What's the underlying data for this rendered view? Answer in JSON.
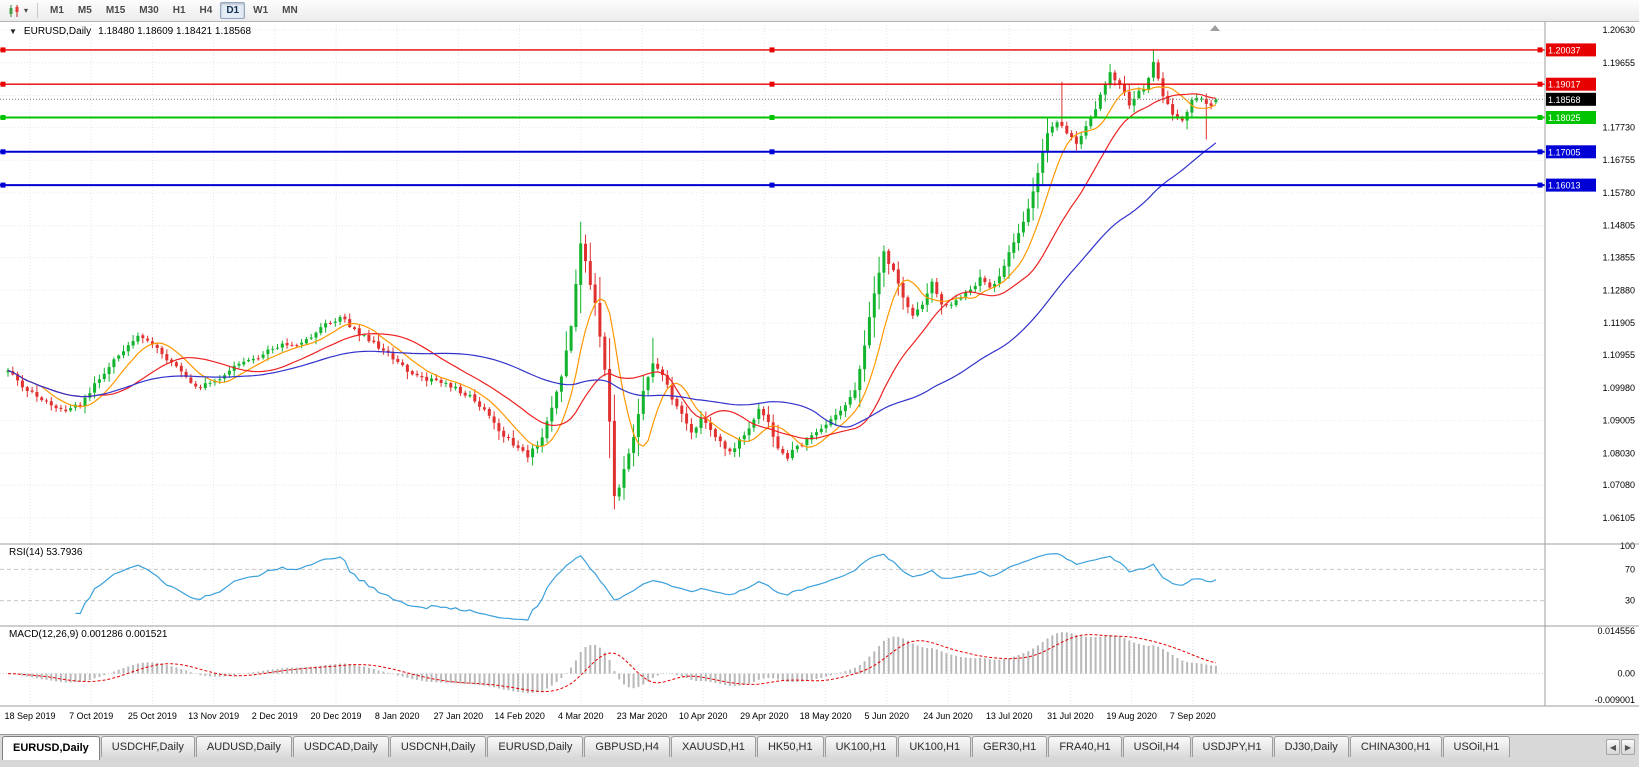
{
  "toolbar": {
    "timeframes": [
      "M1",
      "M5",
      "M15",
      "M30",
      "H1",
      "H4",
      "D1",
      "W1",
      "MN"
    ],
    "active_timeframe": "D1"
  },
  "chart": {
    "symbol_title": "EURUSD,Daily",
    "ohlc_text": "1.18480 1.18609 1.18421 1.18568",
    "rsi_label": "RSI(14) 53.7936",
    "macd_label": "MACD(12,26,9) 0.001286 0.001521"
  },
  "chart_data": {
    "type": "candlestick",
    "symbol": "EURUSD",
    "timeframe": "Daily",
    "title": "EURUSD,Daily",
    "last_ohlc": {
      "open": 1.1848,
      "high": 1.18609,
      "low": 1.18421,
      "close": 1.18568
    },
    "bars": 252,
    "ylim": [
      1.0545,
      1.2084
    ],
    "grid": true,
    "x_labels": [
      "18 Sep 2019",
      "7 Oct 2019",
      "25 Oct 2019",
      "13 Nov 2019",
      "2 Dec 2019",
      "20 Dec 2019",
      "8 Jan 2020",
      "27 Jan 2020",
      "14 Feb 2020",
      "4 Mar 2020",
      "23 Mar 2020",
      "10 Apr 2020",
      "29 Apr 2020",
      "18 May 2020",
      "5 Jun 2020",
      "24 Jun 2020",
      "13 Jul 2020",
      "31 Jul 2020",
      "19 Aug 2020",
      "7 Sep 2020"
    ],
    "y_axis_labels": [
      "1.20630",
      "1.19655",
      "1.17730",
      "1.16755",
      "1.15780",
      "1.14805",
      "1.13855",
      "1.12880",
      "1.11905",
      "1.10955",
      "1.09980",
      "1.09005",
      "1.08030",
      "1.07080",
      "1.06105"
    ],
    "y_gridlines": [
      1.2063,
      1.19655,
      1.1868,
      1.1773,
      1.16755,
      1.1578,
      1.14805,
      1.13855,
      1.1288,
      1.11905,
      1.10955,
      1.0998,
      1.09005,
      1.0803,
      1.0708,
      1.06105
    ],
    "hlines": [
      {
        "price": 1.20037,
        "label": "1.20037",
        "color": "#e60000",
        "width": 1.4
      },
      {
        "price": 1.19017,
        "label": "1.19017",
        "color": "#e60000",
        "width": 1.4
      },
      {
        "price": 1.18025,
        "label": "1.18025",
        "color": "#00c400",
        "width": 2
      },
      {
        "price": 1.17005,
        "label": "1.17005",
        "color": "#0000d6",
        "width": 2
      },
      {
        "price": 1.16013,
        "label": "1.16013",
        "color": "#0000d6",
        "width": 2
      }
    ],
    "current_price": {
      "value": 1.18568,
      "label": "1.18568",
      "tag_color": "#000000"
    },
    "candle_colors": {
      "up": "#12b42e",
      "down": "#e03030"
    },
    "moving_averages": [
      {
        "period": 8,
        "color": "#ff9800"
      },
      {
        "period": 20,
        "color": "#ee2222"
      },
      {
        "period": 50,
        "color": "#3333cc"
      }
    ],
    "price_anchors": [
      [
        0,
        1.105
      ],
      [
        3,
        1.1005
      ],
      [
        6,
        1.0972
      ],
      [
        9,
        1.0945
      ],
      [
        12,
        1.0925
      ],
      [
        15,
        1.0952
      ],
      [
        18,
        1.1005
      ],
      [
        21,
        1.1062
      ],
      [
        24,
        1.111
      ],
      [
        27,
        1.1148
      ],
      [
        30,
        1.1128
      ],
      [
        33,
        1.1082
      ],
      [
        36,
        1.1046
      ],
      [
        39,
        1.1002
      ],
      [
        42,
        1.1008
      ],
      [
        45,
        1.1032
      ],
      [
        48,
        1.107
      ],
      [
        51,
        1.1078
      ],
      [
        54,
        1.1108
      ],
      [
        57,
        1.1128
      ],
      [
        60,
        1.1118
      ],
      [
        63,
        1.1152
      ],
      [
        66,
        1.1185
      ],
      [
        69,
        1.1208
      ],
      [
        72,
        1.1172
      ],
      [
        75,
        1.1138
      ],
      [
        78,
        1.1108
      ],
      [
        81,
        1.1078
      ],
      [
        84,
        1.1032
      ],
      [
        87,
        1.1022
      ],
      [
        90,
        1.1012
      ],
      [
        93,
        1.0995
      ],
      [
        96,
        1.0972
      ],
      [
        99,
        1.0932
      ],
      [
        102,
        1.0872
      ],
      [
        105,
        1.0832
      ],
      [
        108,
        1.0792
      ],
      [
        111,
        1.0852
      ],
      [
        113,
        1.0932
      ],
      [
        115,
        1.1032
      ],
      [
        117,
        1.1182
      ],
      [
        119,
        1.1432
      ],
      [
        120,
        1.1372
      ],
      [
        121,
        1.1302
      ],
      [
        122,
        1.1252
      ],
      [
        123,
        1.1152
      ],
      [
        124,
        1.1052
      ],
      [
        125,
        1.0902
      ],
      [
        126,
        1.0682
      ],
      [
        127,
        1.0702
      ],
      [
        128,
        1.0752
      ],
      [
        130,
        1.0852
      ],
      [
        132,
        1.0992
      ],
      [
        134,
        1.1072
      ],
      [
        136,
        1.1042
      ],
      [
        138,
        1.0962
      ],
      [
        140,
        1.0922
      ],
      [
        142,
        1.0862
      ],
      [
        144,
        1.0902
      ],
      [
        146,
        1.0872
      ],
      [
        148,
        1.0842
      ],
      [
        150,
        1.0802
      ],
      [
        152,
        1.0842
      ],
      [
        154,
        1.0872
      ],
      [
        156,
        1.0932
      ],
      [
        158,
        1.0892
      ],
      [
        160,
        1.0812
      ],
      [
        162,
        1.0792
      ],
      [
        164,
        1.0822
      ],
      [
        166,
        1.0842
      ],
      [
        168,
        1.0872
      ],
      [
        170,
        1.0892
      ],
      [
        172,
        1.0912
      ],
      [
        174,
        1.0952
      ],
      [
        176,
        1.0992
      ],
      [
        178,
        1.1122
      ],
      [
        180,
        1.1282
      ],
      [
        182,
        1.1402
      ],
      [
        184,
        1.1342
      ],
      [
        186,
        1.1262
      ],
      [
        188,
        1.1212
      ],
      [
        190,
        1.1252
      ],
      [
        192,
        1.1312
      ],
      [
        194,
        1.1252
      ],
      [
        196,
        1.1242
      ],
      [
        198,
        1.1262
      ],
      [
        200,
        1.1292
      ],
      [
        202,
        1.1322
      ],
      [
        204,
        1.1292
      ],
      [
        206,
        1.1332
      ],
      [
        208,
        1.1402
      ],
      [
        210,
        1.1462
      ],
      [
        212,
        1.1532
      ],
      [
        214,
        1.1632
      ],
      [
        216,
        1.1752
      ],
      [
        218,
        1.1792
      ],
      [
        220,
        1.1752
      ],
      [
        222,
        1.1722
      ],
      [
        224,
        1.1772
      ],
      [
        226,
        1.1832
      ],
      [
        229,
        1.1932
      ],
      [
        231,
        1.1902
      ],
      [
        233,
        1.1842
      ],
      [
        236,
        1.1892
      ],
      [
        238,
        1.1962
      ],
      [
        240,
        1.1872
      ],
      [
        242,
        1.1812
      ],
      [
        244,
        1.1792
      ],
      [
        246,
        1.1852
      ],
      [
        248,
        1.1862
      ],
      [
        250,
        1.1832
      ],
      [
        251,
        1.18568
      ]
    ],
    "wick_overrides": {
      "119": {
        "high": 1.1492
      },
      "126": {
        "low": 1.0636
      },
      "134": {
        "high": 1.1147
      },
      "182": {
        "high": 1.1422
      },
      "219": {
        "high": 1.1909
      },
      "238": {
        "high": 1.2004
      },
      "249": {
        "low": 1.1737
      }
    },
    "indicators": [
      {
        "name": "RSI",
        "label": "RSI(14) 53.7936",
        "period": 14,
        "levels": [
          70,
          30
        ],
        "axis_labels": [
          "100",
          "70",
          "30"
        ],
        "color": "#3aa0dc",
        "last_value": 53.7936
      },
      {
        "name": "MACD",
        "label": "MACD(12,26,9) 0.001286 0.001521",
        "fast": 12,
        "slow": 26,
        "signal": 9,
        "axis_labels": [
          "0.014556",
          "0.00",
          "-0.009001"
        ],
        "scale_max": 0.014556,
        "scale_min": -0.009001,
        "histogram_color": "#b8b8b8",
        "signal_color": "#e60000",
        "last_values": [
          0.001286,
          0.001521
        ]
      }
    ]
  },
  "tabs": {
    "items": [
      "EURUSD,Daily",
      "USDCHF,Daily",
      "AUDUSD,Daily",
      "USDCAD,Daily",
      "USDCNH,Daily",
      "EURUSD,Daily",
      "GBPUSD,H4",
      "XAUUSD,H1",
      "HK50,H1",
      "UK100,H1",
      "UK100,H1",
      "GER30,H1",
      "FRA40,H1",
      "USOil,H4",
      "USDJPY,H1",
      "DJ30,Daily",
      "CHINA300,H1",
      "USOil,H1"
    ],
    "active_index": 0
  }
}
